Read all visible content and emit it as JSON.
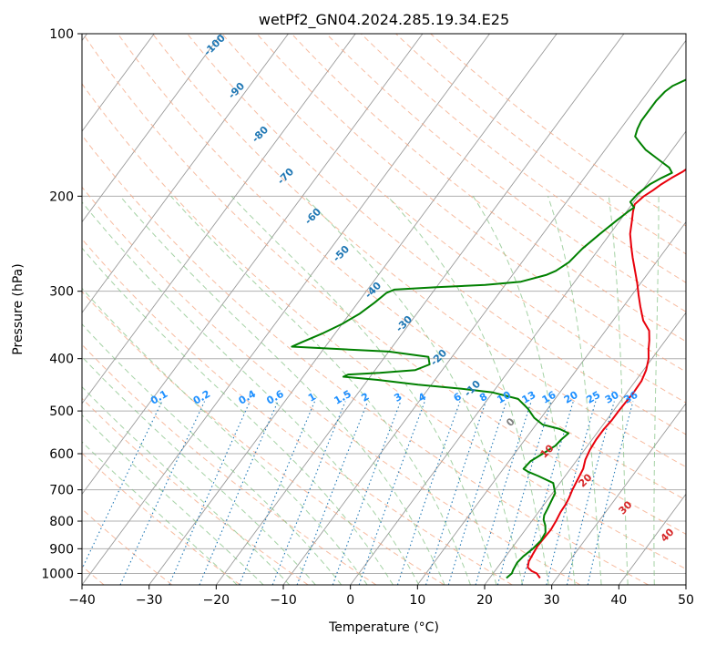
{
  "chart_data": {
    "type": "line",
    "title": "wetPf2_GN04.2024.285.19.34.E25",
    "xlabel": "Temperature (°C)",
    "ylabel": "Pressure (hPa)",
    "xlim": [
      -40,
      50
    ],
    "ylim": [
      1050,
      100
    ],
    "y_scale": "log",
    "grid": true,
    "x_ticks": [
      -40,
      -30,
      -20,
      -10,
      0,
      10,
      20,
      30,
      40,
      50
    ],
    "y_ticks": [
      100,
      200,
      300,
      400,
      500,
      600,
      700,
      800,
      900,
      1000
    ],
    "colors": {
      "temperature": "#e8000b",
      "dewpoint": "#008000",
      "dry_adiabat": "#f4a582",
      "moist_adiabat": "#7fbf7f",
      "mixing_ratio": "#1f77b4",
      "isotherm": "#808080",
      "label_dry": "#1f77b4",
      "label_mix": "#1e90ff",
      "label_moist": "#d62728"
    },
    "series": [
      {
        "color": "#e8000b",
        "points": [
          [
            27.5,
            1020
          ],
          [
            26.5,
            1000
          ],
          [
            25.5,
            990
          ],
          [
            24.5,
            975
          ],
          [
            24.0,
            950
          ],
          [
            23.8,
            920
          ],
          [
            23.6,
            890
          ],
          [
            23.7,
            860
          ],
          [
            23.8,
            830
          ],
          [
            23.6,
            800
          ],
          [
            23.3,
            770
          ],
          [
            23.2,
            745
          ],
          [
            23.0,
            725
          ],
          [
            22.6,
            700
          ],
          [
            22.2,
            665
          ],
          [
            21.9,
            640
          ],
          [
            21.2,
            615
          ],
          [
            20.8,
            590
          ],
          [
            20.6,
            565
          ],
          [
            20.6,
            540
          ],
          [
            20.8,
            520
          ],
          [
            20.8,
            500
          ],
          [
            20.9,
            480
          ],
          [
            21.0,
            460
          ],
          [
            20.9,
            440
          ],
          [
            20.4,
            420
          ],
          [
            19.5,
            400
          ],
          [
            18.5,
            385
          ],
          [
            17.6,
            370
          ],
          [
            16.5,
            355
          ],
          [
            14.5,
            340
          ],
          [
            12.5,
            320
          ],
          [
            11.0,
            305
          ],
          [
            9.5,
            290
          ],
          [
            7.8,
            275
          ],
          [
            6.0,
            260
          ],
          [
            4.8,
            250
          ],
          [
            3.0,
            235
          ],
          [
            1.8,
            222
          ],
          [
            1.0,
            214
          ],
          [
            0.4,
            207
          ],
          [
            0.9,
            200
          ],
          [
            1.6,
            195
          ],
          [
            2.2,
            190
          ],
          [
            3.0,
            185
          ],
          [
            4.0,
            180
          ],
          [
            4.7,
            175
          ],
          [
            5.2,
            170
          ],
          [
            5.3,
            160
          ],
          [
            5.4,
            150
          ],
          [
            5.6,
            140
          ],
          [
            5.7,
            133
          ],
          [
            6.2,
            125
          ],
          [
            6.0,
            118
          ],
          [
            5.0,
            112
          ],
          [
            4.2,
            106
          ],
          [
            4.0,
            100
          ]
        ]
      },
      {
        "color": "#008000",
        "points": [
          [
            22.5,
            1020
          ],
          [
            22.8,
            1000
          ],
          [
            22.6,
            985
          ],
          [
            22.4,
            955
          ],
          [
            22.6,
            930
          ],
          [
            23.2,
            900
          ],
          [
            23.5,
            870
          ],
          [
            23.3,
            840
          ],
          [
            22.5,
            815
          ],
          [
            21.6,
            795
          ],
          [
            21.2,
            780
          ],
          [
            21.0,
            760
          ],
          [
            20.4,
            710
          ],
          [
            19.0,
            680
          ],
          [
            16.0,
            660
          ],
          [
            14.0,
            648
          ],
          [
            13.0,
            640
          ],
          [
            13.2,
            620
          ],
          [
            14.2,
            600
          ],
          [
            15.2,
            580
          ],
          [
            15.4,
            565
          ],
          [
            15.8,
            550
          ],
          [
            14.0,
            540
          ],
          [
            11.0,
            530
          ],
          [
            9.0,
            515
          ],
          [
            7.0,
            495
          ],
          [
            4.5,
            475
          ],
          [
            0.0,
            462
          ],
          [
            -5.0,
            455
          ],
          [
            -12.0,
            447
          ],
          [
            -18.5,
            438
          ],
          [
            -24.0,
            432
          ],
          [
            -23.5,
            428
          ],
          [
            -19.0,
            425
          ],
          [
            -14.0,
            420
          ],
          [
            -12.5,
            410
          ],
          [
            -13.5,
            397
          ],
          [
            -20.0,
            388
          ],
          [
            -35.0,
            380
          ],
          [
            -34.0,
            373
          ],
          [
            -32.0,
            360
          ],
          [
            -30.0,
            345
          ],
          [
            -28.5,
            330
          ],
          [
            -27.5,
            315
          ],
          [
            -26.8,
            302
          ],
          [
            -26.0,
            298
          ],
          [
            -20.0,
            295
          ],
          [
            -13.0,
            292
          ],
          [
            -8.0,
            288
          ],
          [
            -5.0,
            280
          ],
          [
            -4.0,
            275
          ],
          [
            -3.0,
            265
          ],
          [
            -2.5,
            250
          ],
          [
            -1.5,
            235
          ],
          [
            -0.5,
            222
          ],
          [
            0.3,
            213
          ],
          [
            0.7,
            210
          ],
          [
            -0.5,
            205
          ],
          [
            -0.3,
            198
          ],
          [
            0.5,
            190
          ],
          [
            1.5,
            185
          ],
          [
            2.5,
            181
          ],
          [
            1.5,
            177
          ],
          [
            -1.0,
            171
          ],
          [
            -4.0,
            164
          ],
          [
            -6.0,
            158
          ],
          [
            -7.0,
            155
          ],
          [
            -7.5,
            150
          ],
          [
            -7.8,
            145
          ],
          [
            -7.8,
            133
          ],
          [
            -7.5,
            128
          ],
          [
            -7.0,
            125
          ],
          [
            -5.0,
            120
          ],
          [
            -2.0,
            113
          ],
          [
            1.0,
            105
          ],
          [
            1.5,
            100
          ]
        ]
      }
    ],
    "dry_adiabat_labels": [
      "-100",
      "-90",
      "-80",
      "-70",
      "-60",
      "-50",
      "-40",
      "-30",
      "-20",
      "-10"
    ],
    "mixing_ratio_labels": [
      "0.1",
      "0.2",
      "0.4",
      "0.6",
      "1",
      "1.5",
      "2",
      "3",
      "4",
      "6",
      "8",
      "10",
      "13",
      "16",
      "20",
      "25",
      "30",
      "36"
    ],
    "moist_adiabat_labels": [
      "0",
      "10",
      "20",
      "30",
      "40"
    ]
  }
}
